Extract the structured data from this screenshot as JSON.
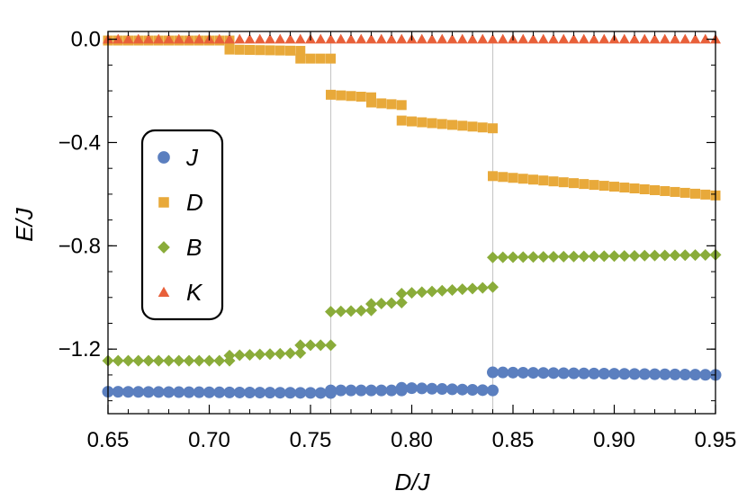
{
  "chart_data": {
    "type": "scatter",
    "xlabel": "D/J",
    "ylabel": "E/J",
    "xlim": [
      0.65,
      0.95
    ],
    "ylim": [
      -1.45,
      0.03
    ],
    "x_ticks": [
      "0.65",
      "0.70",
      "0.75",
      "0.80",
      "0.85",
      "0.90",
      "0.95"
    ],
    "y_ticks": [
      "0.0",
      "−0.4",
      "−0.8",
      "−1.2"
    ],
    "vertical_lines": [
      0.76,
      0.84
    ],
    "legend_position": "middle-left",
    "series": [
      {
        "name": "J",
        "marker": "circle",
        "color": "#5b7fbf",
        "segments": [
          {
            "x0": 0.65,
            "x1": 0.76,
            "y0": -1.365,
            "y1": -1.37
          },
          {
            "x0": 0.76,
            "x1": 0.795,
            "y0": -1.36,
            "y1": -1.36
          },
          {
            "x0": 0.795,
            "x1": 0.84,
            "y0": -1.35,
            "y1": -1.36
          },
          {
            "x0": 0.84,
            "x1": 0.95,
            "y0": -1.29,
            "y1": -1.3
          }
        ]
      },
      {
        "name": "D",
        "marker": "square",
        "color": "#e8a93a",
        "segments": [
          {
            "x0": 0.65,
            "x1": 0.71,
            "y0": -0.005,
            "y1": -0.005
          },
          {
            "x0": 0.71,
            "x1": 0.745,
            "y0": -0.04,
            "y1": -0.045
          },
          {
            "x0": 0.745,
            "x1": 0.76,
            "y0": -0.075,
            "y1": -0.075
          },
          {
            "x0": 0.76,
            "x1": 0.78,
            "y0": -0.215,
            "y1": -0.225
          },
          {
            "x0": 0.78,
            "x1": 0.795,
            "y0": -0.245,
            "y1": -0.255
          },
          {
            "x0": 0.795,
            "x1": 0.84,
            "y0": -0.315,
            "y1": -0.345
          },
          {
            "x0": 0.84,
            "x1": 0.95,
            "y0": -0.53,
            "y1": -0.605
          }
        ]
      },
      {
        "name": "B",
        "marker": "diamond",
        "color": "#8aac3a",
        "segments": [
          {
            "x0": 0.65,
            "x1": 0.71,
            "y0": -1.245,
            "y1": -1.245
          },
          {
            "x0": 0.71,
            "x1": 0.745,
            "y0": -1.225,
            "y1": -1.215
          },
          {
            "x0": 0.745,
            "x1": 0.76,
            "y0": -1.185,
            "y1": -1.185
          },
          {
            "x0": 0.76,
            "x1": 0.78,
            "y0": -1.055,
            "y1": -1.05
          },
          {
            "x0": 0.78,
            "x1": 0.795,
            "y0": -1.025,
            "y1": -1.02
          },
          {
            "x0": 0.795,
            "x1": 0.84,
            "y0": -0.985,
            "y1": -0.96
          },
          {
            "x0": 0.84,
            "x1": 0.95,
            "y0": -0.845,
            "y1": -0.835
          }
        ]
      },
      {
        "name": "K",
        "marker": "triangle",
        "color": "#e8603a",
        "segments": [
          {
            "x0": 0.65,
            "x1": 0.95,
            "y0": 0.0,
            "y1": 0.0
          }
        ]
      }
    ]
  }
}
